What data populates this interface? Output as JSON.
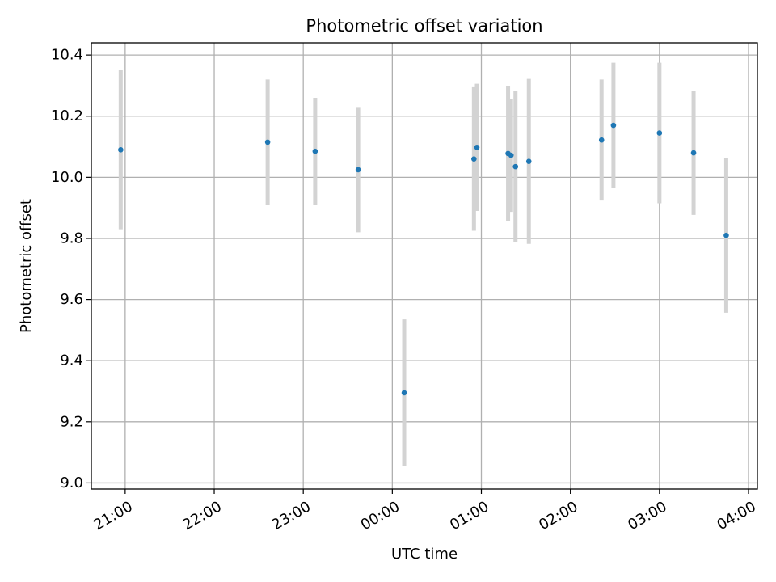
{
  "chart_data": {
    "type": "scatter",
    "title": "Photometric offset variation",
    "xlabel": "UTC time",
    "ylabel": "Photometric offset",
    "x_ticks": [
      "21:00",
      "22:00",
      "23:00",
      "00:00",
      "01:00",
      "02:00",
      "03:00",
      "04:00"
    ],
    "y_ticks": [
      "9.0",
      "9.2",
      "9.4",
      "9.6",
      "9.8",
      "10.0",
      "10.2",
      "10.4"
    ],
    "ylim": [
      8.98,
      10.44
    ],
    "xlim_hours_since_21": [
      -0.38,
      7.1
    ],
    "grid": true,
    "marker_color": "#1f77b4",
    "errorbar_color": "#d3d3d3",
    "points": [
      {
        "time": "20:57",
        "y": 10.09,
        "yerr": 0.26
      },
      {
        "time": "22:36",
        "y": 10.115,
        "yerr": 0.205
      },
      {
        "time": "23:08",
        "y": 10.085,
        "yerr": 0.175
      },
      {
        "time": "23:37",
        "y": 10.025,
        "yerr": 0.205
      },
      {
        "time": "00:08",
        "y": 9.295,
        "yerr": 0.24
      },
      {
        "time": "00:55",
        "y": 10.06,
        "yerr": 0.235
      },
      {
        "time": "00:57",
        "y": 10.098,
        "yerr": 0.208
      },
      {
        "time": "01:18",
        "y": 10.078,
        "yerr": 0.22
      },
      {
        "time": "01:20",
        "y": 10.072,
        "yerr": 0.185
      },
      {
        "time": "01:23",
        "y": 10.035,
        "yerr": 0.248
      },
      {
        "time": "01:32",
        "y": 10.052,
        "yerr": 0.27
      },
      {
        "time": "02:21",
        "y": 10.122,
        "yerr": 0.198
      },
      {
        "time": "02:29",
        "y": 10.17,
        "yerr": 0.205
      },
      {
        "time": "03:00",
        "y": 10.145,
        "yerr": 0.23
      },
      {
        "time": "03:23",
        "y": 10.08,
        "yerr": 0.203
      },
      {
        "time": "03:45",
        "y": 9.81,
        "yerr": 0.253
      }
    ]
  }
}
